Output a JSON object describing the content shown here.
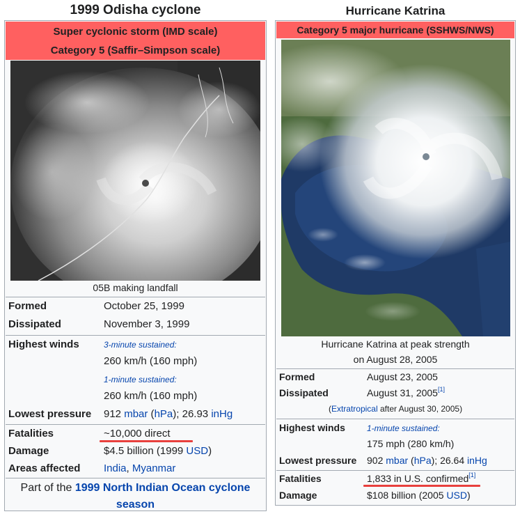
{
  "left": {
    "title": "1999 Odisha cyclone",
    "category_line1": "Super cyclonic storm (IMD scale)",
    "category_line2": "Category 5 (Saffir–Simpson scale)",
    "image_caption": "05B making landfall",
    "formed_label": "Formed",
    "formed_value": "October 25, 1999",
    "dissipated_label": "Dissipated",
    "dissipated_value": "November 3, 1999",
    "winds_label": "Highest winds",
    "winds_3min_label": "3-minute sustained:",
    "winds_3min_value": "260 km/h (160 mph)",
    "winds_1min_label": "1-minute sustained:",
    "winds_1min_value": "260 km/h (160 mph)",
    "pressure_label": "Lowest pressure",
    "pressure_value_a": "912 ",
    "pressure_unit_mbar": "mbar",
    "pressure_value_b": " (",
    "pressure_unit_hpa": "hPa",
    "pressure_value_c": "); 26.93 ",
    "pressure_unit_inhg": "inHg",
    "fatalities_label": "Fatalities",
    "fatalities_value": "~10,000 direct",
    "damage_label": "Damage",
    "damage_value_a": "$4.5 billion (1999 ",
    "damage_unit": "USD",
    "damage_value_b": ")",
    "areas_label": "Areas affected",
    "area_1": "India",
    "area_sep": ", ",
    "area_2": "Myanmar",
    "partof_prefix": "Part of the ",
    "partof_link_line1": "1999 North Indian Ocean cyclone",
    "partof_link_line2": "season"
  },
  "right": {
    "title": "Hurricane Katrina",
    "category_line": "Category 5 major hurricane (SSHWS/NWS)",
    "image_caption_line1": "Hurricane Katrina at peak strength",
    "image_caption_line2": "on August 28, 2005",
    "formed_label": "Formed",
    "formed_value": "August 23, 2005",
    "dissipated_label": "Dissipated",
    "dissipated_value": "August 31, 2005",
    "dissipated_ref": "[1]",
    "extratropical_open": "(",
    "extratropical_link": "Extratropical",
    "extratropical_rest": " after August 30, 2005)",
    "winds_label": "Highest winds",
    "winds_1min_label": "1-minute sustained:",
    "winds_1min_value": "175 mph (280 km/h)",
    "pressure_label": "Lowest pressure",
    "pressure_value_a": "902 ",
    "pressure_unit_mbar": "mbar",
    "pressure_value_b": " (",
    "pressure_unit_hpa": "hPa",
    "pressure_value_c": "); 26.64 ",
    "pressure_unit_inhg": "inHg",
    "fatalities_label": "Fatalities",
    "fatalities_value": "1,833 in U.S. confirmed",
    "fatalities_ref": "[1]",
    "damage_label": "Damage",
    "damage_value_a": "$108 billion (2005 ",
    "damage_unit": "USD",
    "damage_value_b": ")"
  },
  "colors": {
    "category_bar": "#ff6060",
    "link": "#0645ad",
    "highlight_underline": "#e8403d",
    "infobox_bg": "#f8f9fa",
    "border": "#a2a9b1"
  }
}
